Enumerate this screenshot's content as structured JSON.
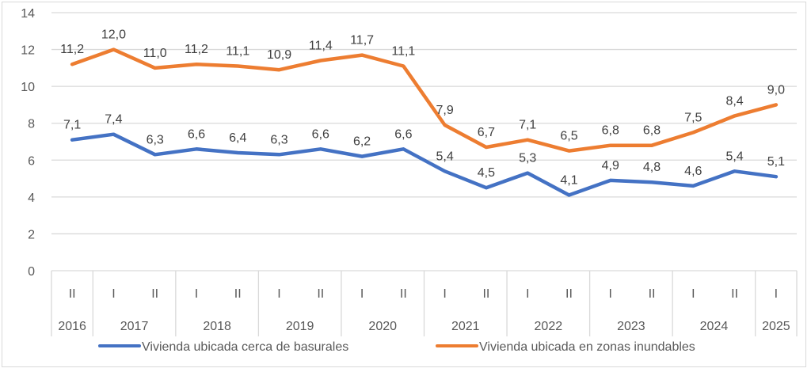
{
  "chart_data": {
    "type": "line",
    "title": "",
    "xlabel": "",
    "ylabel": "",
    "ylim": [
      0,
      14
    ],
    "yticks": [
      0,
      2,
      4,
      6,
      8,
      10,
      12,
      14
    ],
    "ytick_labels": [
      "0",
      "2",
      "4",
      "6",
      "8",
      "10",
      "12",
      "14"
    ],
    "grid": true,
    "legend_position": "bottom",
    "categories": [
      "2016 II",
      "2017 I",
      "2017 II",
      "2018 I",
      "2018 II",
      "2019 I",
      "2019 II",
      "2020 I",
      "2020 II",
      "2021 I",
      "2021 II",
      "2022 I",
      "2022 II",
      "2023 I",
      "2023 II",
      "2024 I",
      "2024 II",
      "2025 I"
    ],
    "semesters": [
      "II",
      "I",
      "II",
      "I",
      "II",
      "I",
      "II",
      "I",
      "II",
      "I",
      "II",
      "I",
      "II",
      "I",
      "II",
      "I",
      "II",
      "I"
    ],
    "years": [
      {
        "label": "2016",
        "span": 1
      },
      {
        "label": "2017",
        "span": 2
      },
      {
        "label": "2018",
        "span": 2
      },
      {
        "label": "2019",
        "span": 2
      },
      {
        "label": "2020",
        "span": 2
      },
      {
        "label": "2021",
        "span": 2
      },
      {
        "label": "2022",
        "span": 2
      },
      {
        "label": "2023",
        "span": 2
      },
      {
        "label": "2024",
        "span": 2
      },
      {
        "label": "2025",
        "span": 1
      }
    ],
    "series": [
      {
        "name": "Vivienda ubicada cerca de basurales",
        "color": "#4472c4",
        "values": [
          7.1,
          7.4,
          6.3,
          6.6,
          6.4,
          6.3,
          6.6,
          6.2,
          6.6,
          5.4,
          4.5,
          5.3,
          4.1,
          4.9,
          4.8,
          4.6,
          5.4,
          5.1
        ],
        "labels": [
          "7,1",
          "7,4",
          "6,3",
          "6,6",
          "6,4",
          "6,3",
          "6,6",
          "6,2",
          "6,6",
          "5,4",
          "4,5",
          "5,3",
          "4,1",
          "4,9",
          "4,8",
          "4,6",
          "5,4",
          "5,1"
        ]
      },
      {
        "name": "Vivienda ubicada en zonas inundables",
        "color": "#ed7d31",
        "values": [
          11.2,
          12.0,
          11.0,
          11.2,
          11.1,
          10.9,
          11.4,
          11.7,
          11.1,
          7.9,
          6.7,
          7.1,
          6.5,
          6.8,
          6.8,
          7.5,
          8.4,
          9.0
        ],
        "labels": [
          "11,2",
          "12,0",
          "11,0",
          "11,2",
          "11,1",
          "10,9",
          "11,4",
          "11,7",
          "11,1",
          "7,9",
          "6,7",
          "7,1",
          "6,5",
          "6,8",
          "6,8",
          "7,5",
          "8,4",
          "9,0"
        ]
      }
    ]
  }
}
